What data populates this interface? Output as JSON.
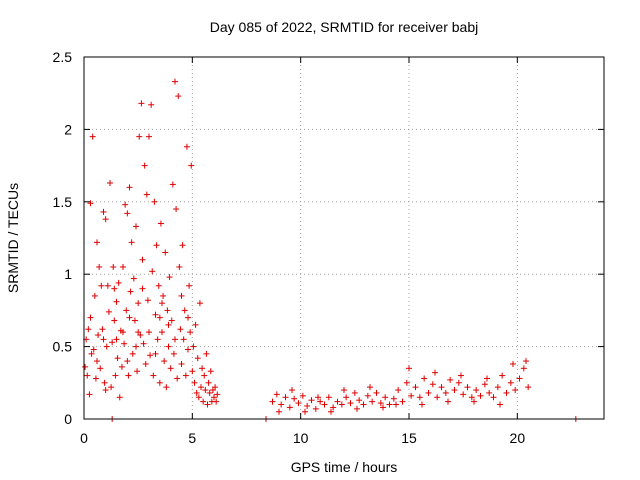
{
  "chart_data": {
    "type": "scatter",
    "title": "Day 085 of 2022, SRMTID for receiver babj",
    "xlabel": "GPS time / hours",
    "ylabel": "SRMTID / TECUs",
    "xlim": [
      0,
      24
    ],
    "ylim": [
      0,
      2.5
    ],
    "xticks": [
      0,
      5,
      10,
      15,
      20
    ],
    "xtick_labels": [
      "0",
      "5",
      "10",
      "15",
      "20"
    ],
    "yticks": [
      0,
      0.5,
      1,
      1.5,
      2,
      2.5
    ],
    "ytick_labels": [
      "0",
      "0.5",
      "1",
      "1.5",
      "2",
      "2.5"
    ],
    "grid": true,
    "marker": "plus",
    "color": "#e00000",
    "series": [
      {
        "name": "SRMTID",
        "points": [
          [
            0.05,
            0.36
          ],
          [
            0.1,
            0.55
          ],
          [
            0.15,
            0.3
          ],
          [
            0.2,
            0.62
          ],
          [
            0.25,
            0.17
          ],
          [
            0.3,
            1.49
          ],
          [
            0.35,
            0.45
          ],
          [
            0.4,
            1.95
          ],
          [
            0.45,
            0.48
          ],
          [
            0.5,
            0.85
          ],
          [
            0.55,
            0.28
          ],
          [
            0.6,
            1.22
          ],
          [
            0.65,
            0.58
          ],
          [
            0.7,
            1.05
          ],
          [
            0.75,
            0.35
          ],
          [
            0.8,
            0.92
          ],
          [
            0.85,
            0.62
          ],
          [
            0.9,
            1.43
          ],
          [
            0.95,
            0.25
          ],
          [
            1.0,
            1.38
          ],
          [
            1.05,
            0.5
          ],
          [
            1.1,
            0.92
          ],
          [
            1.15,
            0.74
          ],
          [
            1.2,
            1.63
          ],
          [
            1.25,
            0.22
          ],
          [
            1.3,
            0.53
          ],
          [
            1.35,
            1.05
          ],
          [
            1.4,
            0.68
          ],
          [
            1.45,
            0.3
          ],
          [
            1.5,
            0.81
          ],
          [
            1.55,
            0.42
          ],
          [
            1.6,
            0.94
          ],
          [
            1.65,
            0.15
          ],
          [
            1.7,
            0.61
          ],
          [
            1.75,
            0.36
          ],
          [
            1.8,
            1.05
          ],
          [
            1.85,
            0.52
          ],
          [
            1.9,
            1.48
          ],
          [
            1.95,
            0.75
          ],
          [
            2.0,
            1.42
          ],
          [
            2.05,
            0.3
          ],
          [
            2.1,
            1.6
          ],
          [
            2.15,
            0.88
          ],
          [
            2.2,
            1.22
          ],
          [
            2.25,
            0.45
          ],
          [
            2.3,
            0.97
          ],
          [
            2.35,
            0.68
          ],
          [
            2.4,
            1.33
          ],
          [
            2.45,
            0.33
          ],
          [
            2.5,
            0.8
          ],
          [
            2.55,
            1.95
          ],
          [
            2.6,
            0.58
          ],
          [
            2.65,
            2.18
          ],
          [
            2.7,
            1.1
          ],
          [
            2.75,
            0.52
          ],
          [
            2.8,
            1.75
          ],
          [
            2.85,
            0.38
          ],
          [
            2.9,
            1.55
          ],
          [
            2.95,
            0.82
          ],
          [
            3.0,
            1.95
          ],
          [
            3.05,
            0.44
          ],
          [
            3.1,
            2.17
          ],
          [
            3.15,
            1.02
          ],
          [
            3.2,
            0.3
          ],
          [
            3.25,
            1.5
          ],
          [
            3.3,
            0.72
          ],
          [
            3.35,
            1.2
          ],
          [
            3.4,
            0.55
          ],
          [
            3.45,
            0.92
          ],
          [
            3.5,
            0.25
          ],
          [
            3.55,
            1.35
          ],
          [
            3.6,
            0.6
          ],
          [
            3.65,
            0.85
          ],
          [
            3.7,
            0.4
          ],
          [
            3.75,
            1.15
          ],
          [
            3.8,
            0.22
          ],
          [
            3.85,
            0.75
          ],
          [
            3.9,
            0.5
          ],
          [
            3.95,
            0.98
          ],
          [
            4.0,
            0.35
          ],
          [
            4.05,
            0.68
          ],
          [
            4.1,
            1.62
          ],
          [
            4.15,
            0.45
          ],
          [
            4.2,
            2.33
          ],
          [
            4.25,
            1.45
          ],
          [
            4.3,
            0.28
          ],
          [
            4.35,
            2.23
          ],
          [
            4.4,
            1.05
          ],
          [
            4.45,
            0.62
          ],
          [
            4.5,
            0.38
          ],
          [
            4.55,
            1.2
          ],
          [
            4.6,
            0.55
          ],
          [
            4.65,
            0.75
          ],
          [
            4.7,
            0.3
          ],
          [
            4.75,
            1.88
          ],
          [
            4.8,
            0.48
          ],
          [
            4.85,
            0.92
          ],
          [
            4.9,
            0.6
          ],
          [
            4.95,
            1.75
          ],
          [
            5.0,
            0.33
          ],
          [
            5.05,
            0.5
          ],
          [
            5.1,
            0.25
          ],
          [
            5.15,
            0.65
          ],
          [
            5.2,
            0.18
          ],
          [
            5.25,
            0.42
          ],
          [
            5.3,
            0.15
          ],
          [
            5.35,
            0.8
          ],
          [
            5.4,
            0.22
          ],
          [
            5.45,
            0.35
          ],
          [
            5.5,
            0.12
          ],
          [
            5.55,
            0.3
          ],
          [
            5.6,
            0.2
          ],
          [
            5.65,
            0.45
          ],
          [
            5.7,
            0.1
          ],
          [
            5.75,
            0.25
          ],
          [
            5.8,
            0.18
          ],
          [
            5.85,
            0.33
          ],
          [
            5.9,
            0.12
          ],
          [
            5.95,
            0.2
          ],
          [
            6.0,
            0.15
          ],
          [
            6.05,
            0.22
          ],
          [
            6.1,
            0.12
          ],
          [
            6.15,
            0.17
          ],
          [
            0.3,
            0.7
          ],
          [
            0.6,
            0.4
          ],
          [
            0.9,
            0.55
          ],
          [
            1.4,
            0.9
          ],
          [
            1.8,
            0.6
          ],
          [
            2.1,
            0.7
          ],
          [
            2.4,
            0.5
          ],
          [
            2.7,
            0.9
          ],
          [
            3.0,
            0.6
          ],
          [
            3.3,
            0.45
          ],
          [
            3.6,
            0.8
          ],
          [
            3.9,
            0.65
          ],
          [
            4.2,
            0.55
          ],
          [
            4.5,
            0.85
          ],
          [
            4.8,
            0.7
          ],
          [
            1.0,
            0.2
          ],
          [
            1.5,
            0.55
          ],
          [
            2.0,
            0.4
          ],
          [
            2.5,
            0.6
          ],
          [
            3.5,
            0.7
          ],
          [
            8.7,
            0.12
          ],
          [
            8.9,
            0.17
          ],
          [
            9.1,
            0.1
          ],
          [
            9.3,
            0.15
          ],
          [
            9.5,
            0.08
          ],
          [
            9.7,
            0.14
          ],
          [
            9.9,
            0.11
          ],
          [
            10.1,
            0.16
          ],
          [
            10.3,
            0.09
          ],
          [
            10.5,
            0.13
          ],
          [
            10.7,
            0.07
          ],
          [
            10.9,
            0.12
          ],
          [
            11.1,
            0.1
          ],
          [
            11.3,
            0.15
          ],
          [
            11.5,
            0.08
          ],
          [
            11.7,
            0.12
          ],
          [
            11.9,
            0.1
          ],
          [
            12.1,
            0.15
          ],
          [
            12.3,
            0.11
          ],
          [
            12.5,
            0.18
          ],
          [
            12.7,
            0.13
          ],
          [
            12.9,
            0.1
          ],
          [
            13.1,
            0.16
          ],
          [
            13.3,
            0.12
          ],
          [
            13.5,
            0.18
          ],
          [
            13.7,
            0.11
          ],
          [
            13.9,
            0.15
          ],
          [
            14.1,
            0.1
          ],
          [
            14.3,
            0.14
          ],
          [
            14.5,
            0.2
          ],
          [
            14.7,
            0.12
          ],
          [
            14.9,
            0.25
          ],
          [
            15.1,
            0.16
          ],
          [
            15.3,
            0.22
          ],
          [
            15.5,
            0.15
          ],
          [
            15.7,
            0.28
          ],
          [
            15.9,
            0.18
          ],
          [
            16.1,
            0.24
          ],
          [
            16.3,
            0.15
          ],
          [
            16.5,
            0.22
          ],
          [
            16.7,
            0.18
          ],
          [
            16.9,
            0.27
          ],
          [
            17.1,
            0.2
          ],
          [
            17.3,
            0.25
          ],
          [
            17.5,
            0.17
          ],
          [
            17.7,
            0.22
          ],
          [
            17.9,
            0.15
          ],
          [
            18.1,
            0.2
          ],
          [
            18.3,
            0.16
          ],
          [
            18.5,
            0.24
          ],
          [
            18.7,
            0.18
          ],
          [
            18.9,
            0.15
          ],
          [
            19.1,
            0.22
          ],
          [
            19.3,
            0.3
          ],
          [
            19.5,
            0.18
          ],
          [
            19.7,
            0.25
          ],
          [
            19.9,
            0.2
          ],
          [
            20.1,
            0.28
          ],
          [
            20.3,
            0.35
          ],
          [
            20.5,
            0.22
          ],
          [
            9.0,
            0.05
          ],
          [
            9.6,
            0.2
          ],
          [
            10.2,
            0.05
          ],
          [
            10.8,
            0.15
          ],
          [
            11.4,
            0.05
          ],
          [
            12.0,
            0.2
          ],
          [
            12.6,
            0.07
          ],
          [
            13.2,
            0.22
          ],
          [
            13.8,
            0.08
          ],
          [
            14.4,
            0.1
          ],
          [
            15.0,
            0.35
          ],
          [
            15.6,
            0.1
          ],
          [
            16.2,
            0.32
          ],
          [
            16.8,
            0.12
          ],
          [
            17.4,
            0.3
          ],
          [
            18.0,
            0.12
          ],
          [
            18.6,
            0.28
          ],
          [
            19.2,
            0.1
          ],
          [
            19.8,
            0.38
          ],
          [
            20.4,
            0.4
          ],
          [
            1.3,
            0.0
          ],
          [
            8.4,
            0.0
          ],
          [
            22.7,
            0.0
          ]
        ]
      }
    ]
  }
}
